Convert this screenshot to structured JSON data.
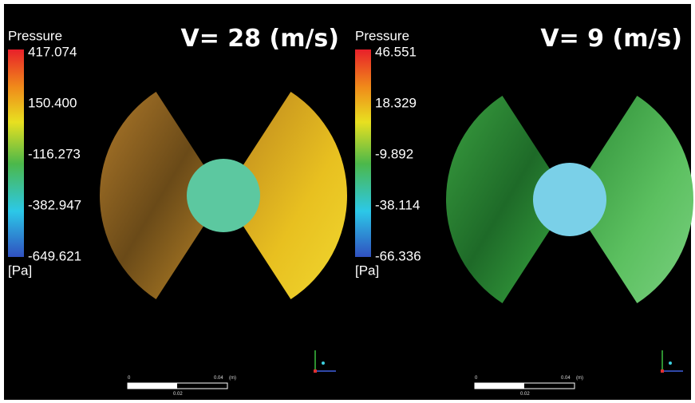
{
  "panels": [
    {
      "title": "V= 28 (m/s)",
      "colorbar": {
        "label": "Pressure",
        "ticks": [
          "417.074",
          "150.400",
          "-116.273",
          "-382.947",
          "-649.621"
        ],
        "unit": "[Pa]"
      },
      "scale": {
        "start": "0",
        "end": "0.04",
        "unit": "(m)",
        "mid": "0.02"
      }
    },
    {
      "title": "V= 9 (m/s)",
      "colorbar": {
        "label": "Pressure",
        "ticks": [
          "46.551",
          "18.329",
          "-9.892",
          "-38.114",
          "-66.336"
        ],
        "unit": "[Pa]"
      },
      "scale": {
        "start": "0",
        "end": "0.04",
        "unit": "(m)",
        "mid": "0.02"
      }
    }
  ]
}
